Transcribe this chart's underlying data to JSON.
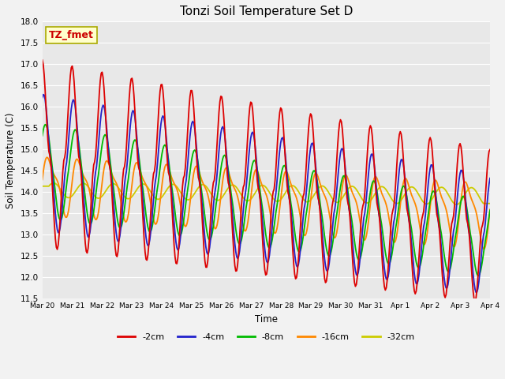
{
  "title": "Tonzi Soil Temperature Set D",
  "xlabel": "Time",
  "ylabel": "Soil Temperature (C)",
  "ylim": [
    11.5,
    18.0
  ],
  "yticks": [
    11.5,
    12.0,
    12.5,
    13.0,
    13.5,
    14.0,
    14.5,
    15.0,
    15.5,
    16.0,
    16.5,
    17.0,
    17.5,
    18.0
  ],
  "xtick_labels": [
    "Mar 20",
    "Mar 21",
    "Mar 22",
    "Mar 23",
    "Mar 24",
    "Mar 25",
    "Mar 26",
    "Mar 27",
    "Mar 28",
    "Mar 29",
    "Mar 30",
    "Mar 31",
    "Apr 1",
    "Apr 2",
    "Apr 3",
    "Apr 4"
  ],
  "legend_labels": [
    "-2cm",
    "-4cm",
    "-8cm",
    "-16cm",
    "-32cm"
  ],
  "legend_colors": [
    "#dd0000",
    "#2222cc",
    "#00bb00",
    "#ff8800",
    "#cccc00"
  ],
  "annotation_text": "TZ_fmet",
  "annotation_color": "#cc0000",
  "annotation_bg": "#ffffcc",
  "annotation_border": "#aaaa00",
  "plot_bg": "#e8e8e8",
  "grid_color": "#ffffff",
  "n_points": 480
}
